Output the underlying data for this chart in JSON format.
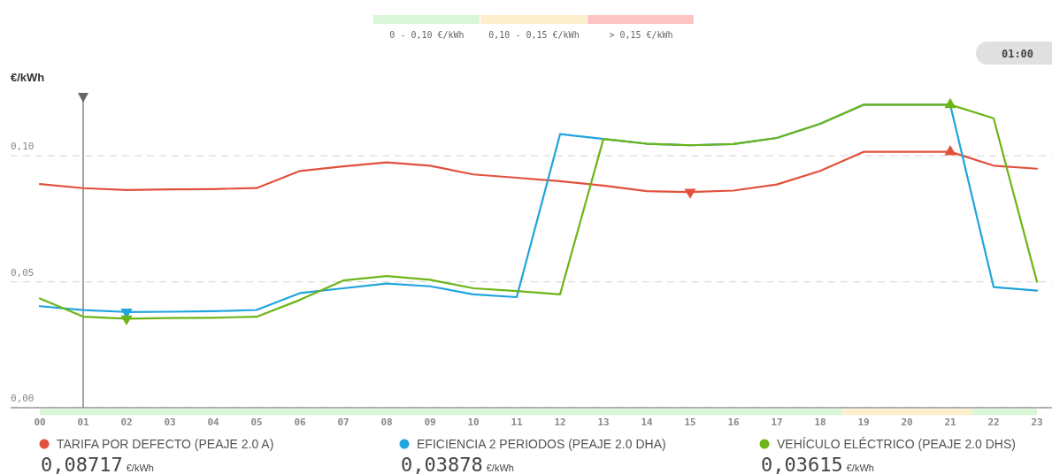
{
  "chart_data": {
    "type": "line",
    "ylabel": "€/kWh",
    "categories": [
      "00",
      "01",
      "02",
      "03",
      "04",
      "05",
      "06",
      "07",
      "08",
      "09",
      "10",
      "11",
      "12",
      "13",
      "14",
      "15",
      "16",
      "17",
      "18",
      "19",
      "20",
      "21",
      "22",
      "23"
    ],
    "series": [
      {
        "name": "TARIFA POR DEFECTO (PEAJE 2.0 A)",
        "color": "#e2503b",
        "values": [
          0.0888,
          0.08717,
          0.0864,
          0.0867,
          0.0868,
          0.0872,
          0.094,
          0.0958,
          0.0974,
          0.0961,
          0.0926,
          0.0913,
          0.0899,
          0.0882,
          0.086,
          0.0856,
          0.0862,
          0.0886,
          0.094,
          0.1016,
          0.1016,
          0.1016,
          0.0961,
          0.0949
        ]
      },
      {
        "name": "EFICIENCIA 2 PERIODOS (PEAJE 2.0 DHA)",
        "color": "#1fa4dd",
        "values": [
          0.0403,
          0.03878,
          0.038,
          0.0381,
          0.0383,
          0.0388,
          0.0455,
          0.0474,
          0.0493,
          0.0482,
          0.045,
          0.0439,
          0.1086,
          0.1067,
          0.1048,
          0.1042,
          0.1047,
          0.1071,
          0.1127,
          0.1203,
          0.1203,
          0.1203,
          0.0479,
          0.0465
        ]
      },
      {
        "name": "VEHÍCULO ELÉCTRICO (PEAJE 2.0 DHS)",
        "color": "#6db516",
        "values": [
          0.0434,
          0.03615,
          0.0353,
          0.0356,
          0.0357,
          0.0361,
          0.0428,
          0.0505,
          0.0523,
          0.0508,
          0.0474,
          0.0463,
          0.045,
          0.1067,
          0.1048,
          0.1042,
          0.1047,
          0.1071,
          0.1127,
          0.1203,
          0.1203,
          0.1203,
          0.1149,
          0.05
        ]
      },
      {
        "type": "scatter",
        "color": "#e2503b",
        "marker": "triangle",
        "x": [
          "21"
        ],
        "values": [
          0.1016
        ]
      },
      {
        "type": "scatter",
        "color": "#e2503b",
        "marker": "triangle-down",
        "x": [
          "15"
        ],
        "values": [
          0.0856
        ]
      },
      {
        "type": "scatter",
        "color": "#1fa4dd",
        "marker": "triangle-down",
        "x": [
          "02"
        ],
        "values": [
          0.038
        ]
      },
      {
        "type": "scatter",
        "color": "#6db516",
        "marker": "triangle-down",
        "x": [
          "02"
        ],
        "values": [
          0.0353
        ]
      },
      {
        "type": "scatter",
        "color": "#6db516",
        "marker": "triangle",
        "x": [
          "21"
        ],
        "values": [
          0.1203
        ]
      }
    ],
    "ylim": [
      0,
      0.125
    ],
    "yticks": [
      {
        "value": 0,
        "label": "0,00"
      },
      {
        "value": 0.05,
        "label": "0,05"
      },
      {
        "value": 0.1,
        "label": "0,10"
      }
    ],
    "grid": "y",
    "legend": "bottom",
    "ref_lines": [
      {
        "axis": "x",
        "value": "01",
        "color": "#666666"
      }
    ],
    "annotations": [
      "01:00",
      "0,08717 €/kWh",
      "0,03878 €/kWh",
      "0,03615 €/kWh",
      "0 - 0,10 €/kWh",
      "0,10 - 0,15 €/kWh",
      "> 0,15 €/kWh"
    ]
  }
}
